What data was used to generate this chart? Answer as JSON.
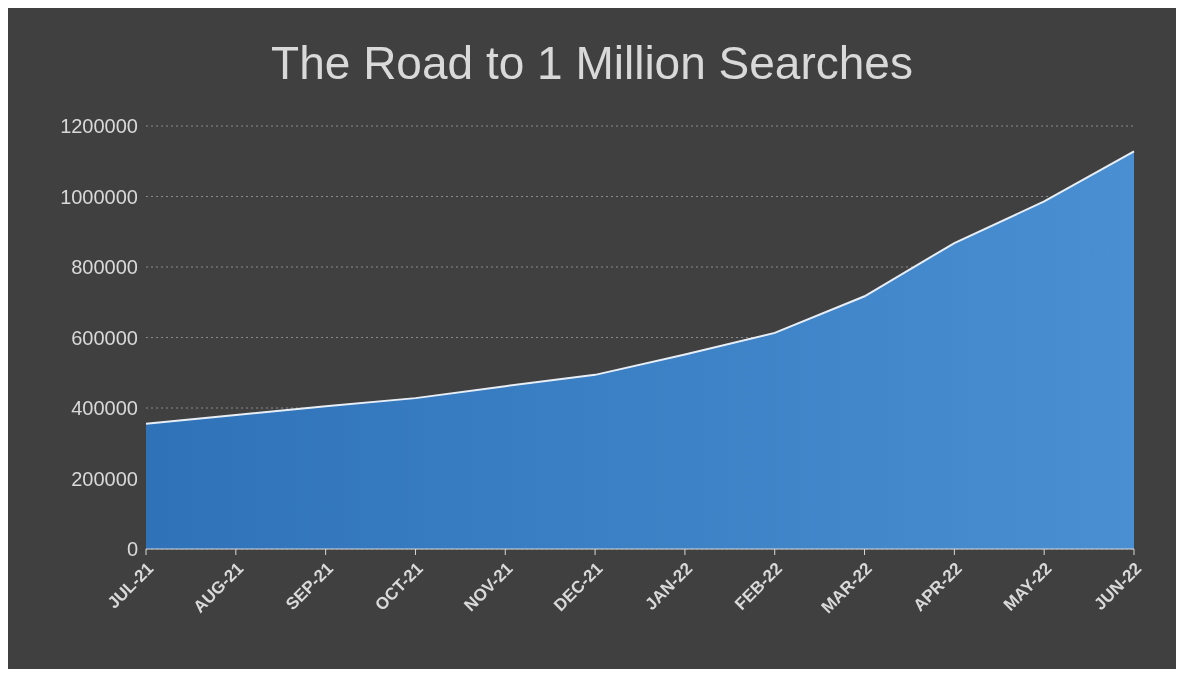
{
  "chart_data": {
    "type": "area",
    "title": "The Road to 1 Million Searches",
    "categories": [
      "JUL-21",
      "AUG-21",
      "SEP-21",
      "OCT-21",
      "NOV-21",
      "DEC-21",
      "JAN-22",
      "FEB-22",
      "MAR-22",
      "APR-22",
      "MAY-22",
      "JUN-22"
    ],
    "values": [
      355000,
      380000,
      405000,
      428000,
      462000,
      494000,
      552000,
      613000,
      717000,
      868000,
      986000,
      1128000
    ],
    "color": "#4a8fd2",
    "ylim": [
      0,
      1200000
    ],
    "yticks": [
      0,
      200000,
      400000,
      600000,
      800000,
      1000000,
      1200000
    ],
    "grid": "y"
  }
}
